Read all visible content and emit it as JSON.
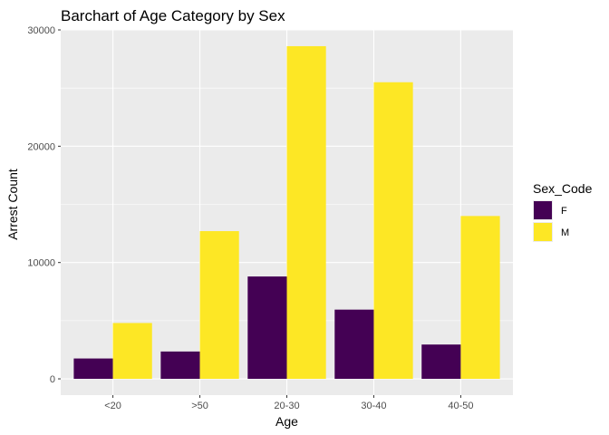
{
  "chart_data": {
    "type": "bar",
    "title": "Barchart of Age Category by Sex",
    "xlabel": "Age",
    "ylabel": "Arrest Count",
    "categories": [
      "<20",
      ">50",
      "20-30",
      "30-40",
      "40-50"
    ],
    "series": [
      {
        "name": "F",
        "color": "#440154",
        "values": [
          1750,
          2350,
          8800,
          5950,
          2950
        ]
      },
      {
        "name": "M",
        "color": "#FDE725",
        "values": [
          4800,
          12700,
          28600,
          25500,
          14000
        ]
      }
    ],
    "ylim": [
      -1400,
      30000
    ],
    "yticks": [
      0,
      10000,
      20000,
      30000
    ],
    "ytick_labels": [
      "0",
      "10000",
      "20000",
      "30000"
    ],
    "grid": true,
    "legend": {
      "title": "Sex_Code",
      "position": "right"
    },
    "panel_background": "#EBEBEB",
    "grid_color": "#FFFFFF"
  }
}
